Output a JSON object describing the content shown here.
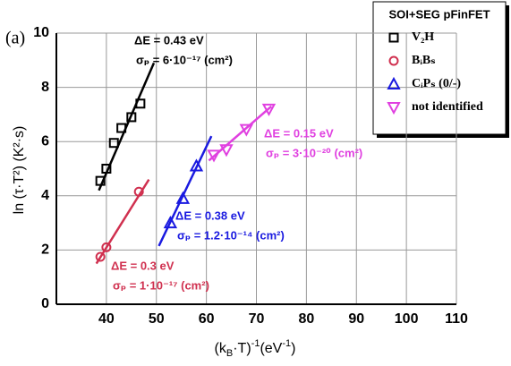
{
  "chart_data": {
    "type": "scatter",
    "panel": "(a)",
    "x_label": [
      "(k",
      "B",
      "·T)",
      "-1",
      "(eV",
      "-1",
      ")"
    ],
    "y_label": "ln (τ·T²) (K²·s)",
    "xlim": [
      30,
      110
    ],
    "ylim": [
      0,
      10
    ],
    "xticks": [
      40,
      50,
      60,
      70,
      80,
      90,
      100,
      110
    ],
    "yticks": [
      0,
      2,
      4,
      6,
      8,
      10
    ],
    "grid": true,
    "legend_title": "SOI+SEG pFinFET",
    "legend": "upper right",
    "series": [
      {
        "name": "V₂H",
        "color": "#000000",
        "marker": "square",
        "x": [
          38.8,
          40,
          41.5,
          43,
          45,
          46.8
        ],
        "values": [
          4.55,
          5.0,
          5.95,
          6.5,
          6.9,
          7.4
        ],
        "fit": {
          "x": [
            38.5,
            49.5
          ],
          "y": [
            4.2,
            8.9
          ]
        }
      },
      {
        "name": "BᵢBₛ",
        "color": "#d0304f",
        "marker": "circle",
        "x": [
          38.8,
          40,
          46.5
        ],
        "values": [
          1.75,
          2.1,
          4.15
        ],
        "fit": {
          "x": [
            38,
            48.5
          ],
          "y": [
            1.5,
            4.6
          ]
        }
      },
      {
        "name": "CᵢPₛ (0/-)",
        "color": "#1a1ae0",
        "marker": "triangle-up",
        "x": [
          52.8,
          55.3,
          58
        ],
        "values": [
          3.0,
          3.9,
          5.1
        ],
        "fit": {
          "x": [
            50.5,
            61
          ],
          "y": [
            2.15,
            6.2
          ]
        }
      },
      {
        "name": "not identified",
        "color": "#e040e0",
        "marker": "triangle-down",
        "x": [
          61.5,
          64,
          68,
          72.5
        ],
        "values": [
          5.5,
          5.7,
          6.45,
          7.2
        ],
        "fit": {
          "x": [
            60.5,
            73
          ],
          "y": [
            5.3,
            7.3
          ]
        }
      }
    ],
    "annotations": [
      {
        "energy": "ΔE = 0.43 eV",
        "sigma": "σₚ = 6·10⁻¹⁷ (cm²)",
        "color": "#000000"
      },
      {
        "energy": "ΔE = 0.3 eV",
        "sigma": "σₚ = 1·10⁻¹⁷ (cm²)",
        "color": "#d0304f"
      },
      {
        "energy": "ΔE = 0.38 eV",
        "sigma": "σₚ = 1.2·10⁻¹⁴ (cm²)",
        "color": "#1a1ae0"
      },
      {
        "energy": "ΔE = 0.15 eV",
        "sigma": "σₚ = 3·10⁻²⁰ (cm²)",
        "color": "#e040e0"
      }
    ]
  }
}
